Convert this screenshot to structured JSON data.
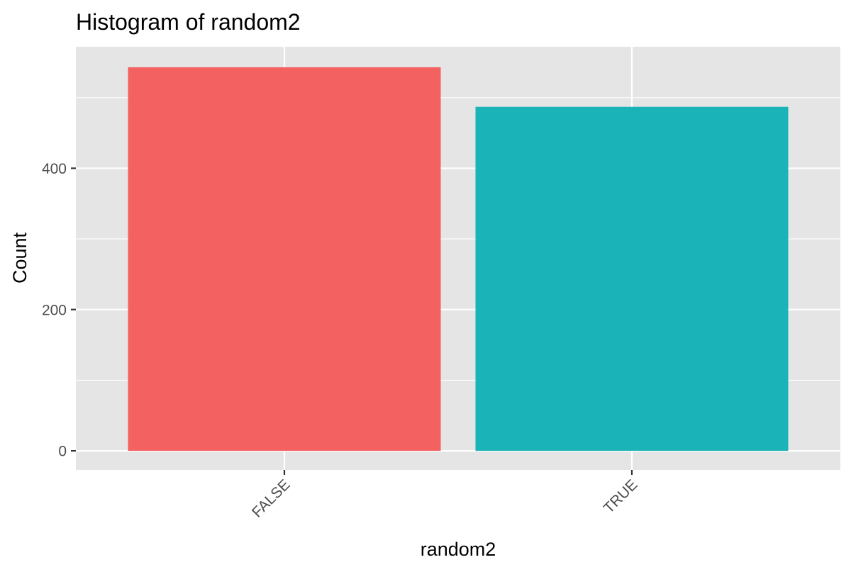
{
  "chart_data": {
    "type": "bar",
    "title": "Histogram of random2",
    "xlabel": "random2",
    "ylabel": "Count",
    "categories": [
      "FALSE",
      "TRUE"
    ],
    "values": [
      543,
      487
    ],
    "ylim": [
      -27,
      572
    ],
    "y_ticks": [
      0,
      200,
      400
    ],
    "y_tick_labels": [
      "0",
      "200",
      "400"
    ],
    "colors": [
      "#F36160",
      "#1AB3B8"
    ],
    "panel_background": "#E5E5E5",
    "grid_color": "#FFFFFF",
    "grid": true,
    "legend": "none"
  }
}
